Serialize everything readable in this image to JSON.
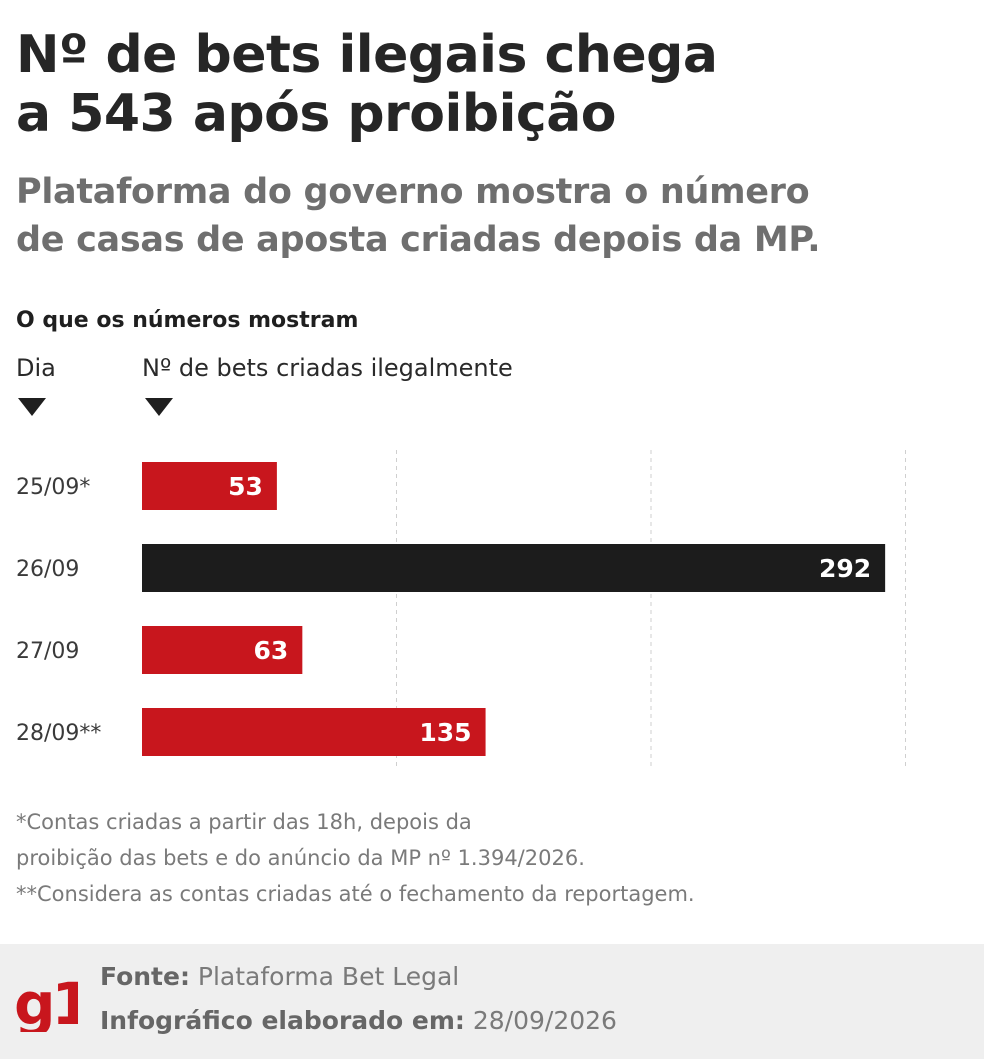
{
  "header": {
    "title_line1": "Nº de bets ilegais chega",
    "title_line2": "a 543 após proibição",
    "subtitle_line1": "Plataforma do governo mostra o número",
    "subtitle_line2": "de casas de aposta criadas depois da MP."
  },
  "section": {
    "heading": "O que os números mostram",
    "day_label": "Dia",
    "count_label": "Nº de bets criadas ilegalmente"
  },
  "colors": {
    "highlight": "#c8161d",
    "main": "#1c1c1c",
    "label_text": "#ffffff"
  },
  "chart_data": {
    "type": "bar",
    "orientation": "horizontal",
    "title": "Nº de bets ilegais chega a 543 após proibição",
    "xlabel": "Nº de bets criadas ilegalmente",
    "ylabel": "Dia",
    "categories": [
      "25/09*",
      "26/09",
      "27/09",
      "28/09**"
    ],
    "values": [
      53,
      292,
      63,
      135
    ],
    "bar_colors": [
      "#c8161d",
      "#1c1c1c",
      "#c8161d",
      "#c8161d"
    ],
    "xlim": [
      0,
      300
    ],
    "grid": true
  },
  "footnotes": {
    "line1": "*Contas criadas a partir das 18h, depois da",
    "line2": "proibição das bets e do anúncio da MP nº 1.394/2026.",
    "line3": "**Considera as contas criadas até o fechamento da reportagem."
  },
  "footer": {
    "logo_text": "g1",
    "source_label": "Fonte:",
    "source_value": "Plataforma Bet Legal",
    "date_label": "Infográfico elaborado em:",
    "date_value": "28/09/2026"
  }
}
